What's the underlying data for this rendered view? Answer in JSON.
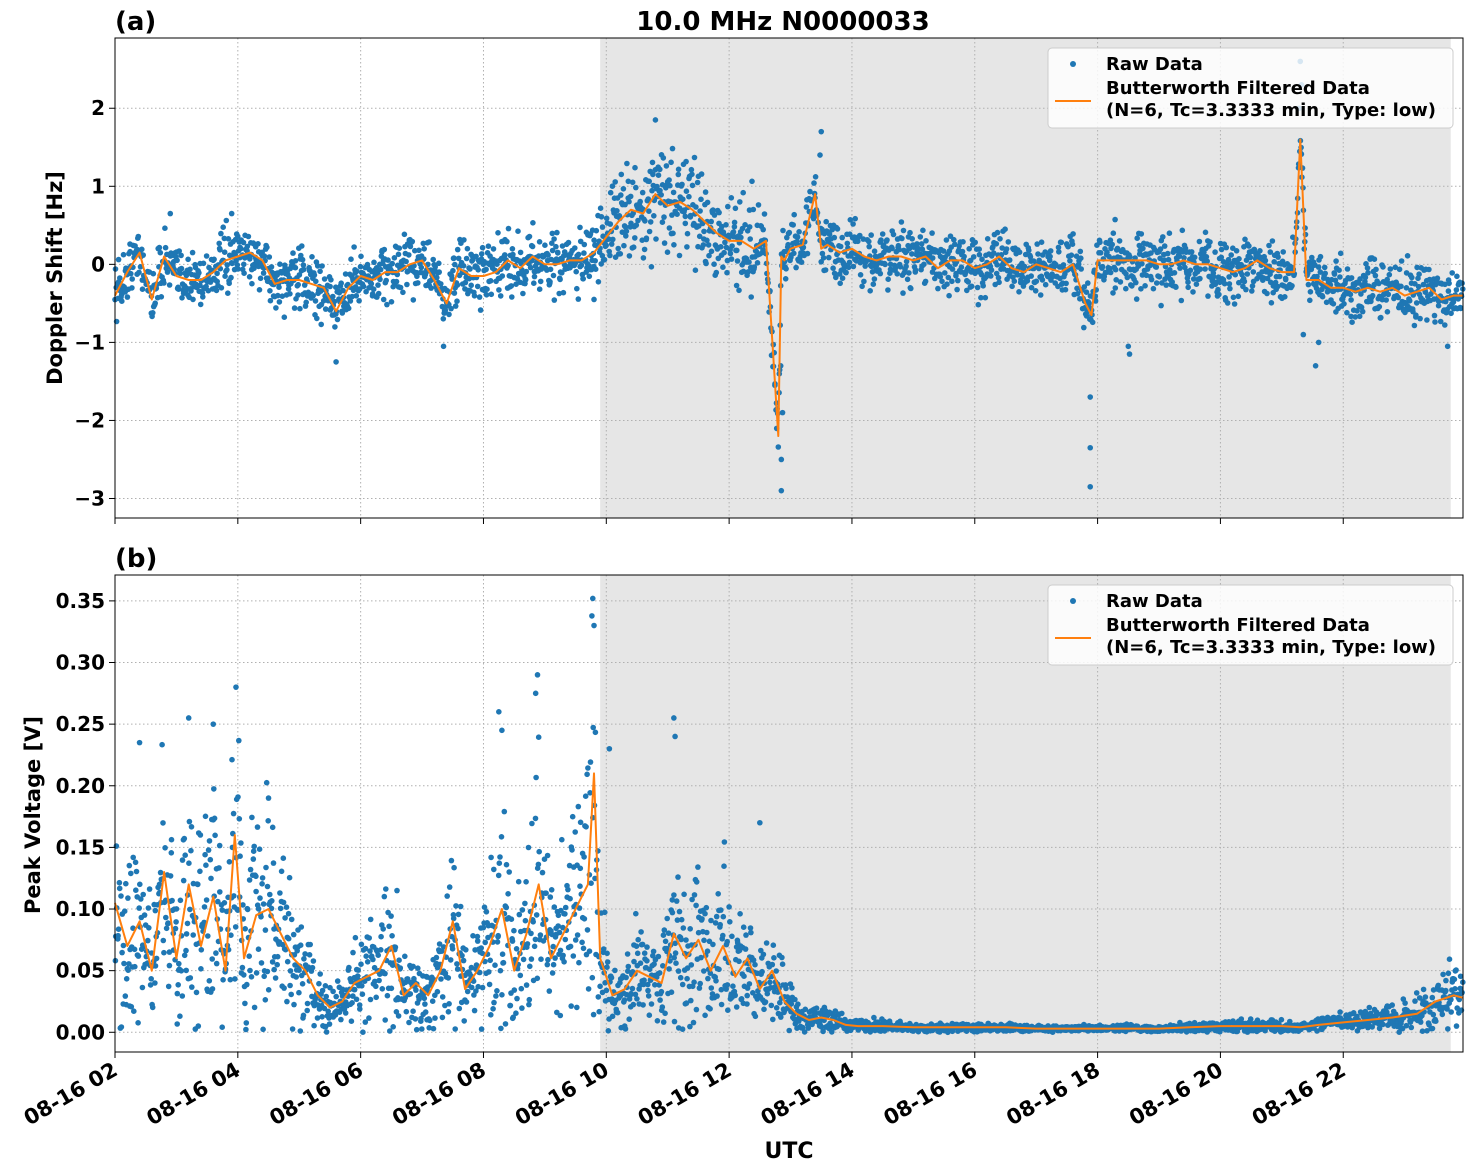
{
  "title": "10.0 MHz N0000033",
  "xlabel": "UTC",
  "x_ticks": [
    "08-16 02",
    "08-16 04",
    "08-16 06",
    "08-16 08",
    "08-16 10",
    "08-16 12",
    "08-16 14",
    "08-16 16",
    "08-16 18",
    "08-16 20",
    "08-16 22"
  ],
  "colors": {
    "raw": "#1f77b4",
    "filtered": "#ff7f0e",
    "shade": "#e6e6e6",
    "grid": "#b0b0b0"
  },
  "legend": {
    "raw_label": "Raw Data",
    "filtered_label_line1": "Butterworth Filtered Data",
    "filtered_label_line2": "(N=6, Tc=3.3333 min, Type: low)",
    "placement": "upper right"
  },
  "shaded_region": {
    "start_hour": 9.9,
    "end_hour": 23.75
  },
  "chart_data": [
    {
      "type": "scatter",
      "panel_label": "(a)",
      "ylabel": "Doppler Shift [Hz]",
      "xlim_hours": [
        2.0,
        23.95
      ],
      "ylim": [
        -3.25,
        2.9
      ],
      "y_ticks": [
        {
          "v": 2,
          "t": "2"
        },
        {
          "v": 1,
          "t": "1"
        },
        {
          "v": 0,
          "t": "0"
        },
        {
          "v": -1,
          "t": "−1"
        },
        {
          "v": -2,
          "t": "−2"
        },
        {
          "v": -3,
          "t": "−3"
        }
      ],
      "grid": true,
      "series": [
        {
          "name": "Butterworth Filtered Data",
          "x_hours": [
            2.0,
            2.2,
            2.4,
            2.6,
            2.8,
            3.0,
            3.2,
            3.4,
            3.6,
            3.8,
            4.0,
            4.2,
            4.4,
            4.6,
            4.8,
            5.0,
            5.2,
            5.4,
            5.6,
            5.8,
            6.0,
            6.2,
            6.4,
            6.6,
            6.8,
            7.0,
            7.2,
            7.4,
            7.6,
            7.8,
            8.0,
            8.2,
            8.4,
            8.6,
            8.8,
            9.0,
            9.2,
            9.4,
            9.6,
            9.8,
            10.0,
            10.2,
            10.4,
            10.6,
            10.8,
            11.0,
            11.2,
            11.4,
            11.6,
            11.8,
            12.0,
            12.2,
            12.4,
            12.6,
            12.8,
            12.85,
            12.9,
            13.0,
            13.2,
            13.4,
            13.5,
            13.6,
            13.8,
            14.0,
            14.2,
            14.4,
            14.6,
            14.8,
            15.0,
            15.2,
            15.4,
            15.6,
            15.8,
            16.0,
            16.2,
            16.4,
            16.6,
            16.8,
            17.0,
            17.2,
            17.4,
            17.6,
            17.8,
            17.9,
            18.0,
            18.2,
            18.4,
            18.6,
            18.8,
            19.0,
            19.2,
            19.4,
            19.6,
            19.8,
            20.0,
            20.2,
            20.4,
            20.6,
            20.8,
            21.0,
            21.2,
            21.3,
            21.4,
            21.6,
            21.8,
            22.0,
            22.2,
            22.4,
            22.6,
            22.8,
            23.0,
            23.2,
            23.4,
            23.6,
            23.8,
            23.95
          ],
          "y": [
            -0.4,
            -0.1,
            0.15,
            -0.45,
            0.1,
            -0.15,
            -0.2,
            -0.2,
            -0.1,
            0.05,
            0.1,
            0.15,
            0.05,
            -0.25,
            -0.2,
            -0.2,
            -0.25,
            -0.3,
            -0.6,
            -0.3,
            -0.15,
            -0.2,
            -0.1,
            -0.1,
            0.0,
            0.05,
            -0.2,
            -0.5,
            -0.05,
            -0.15,
            -0.15,
            -0.1,
            0.05,
            -0.05,
            0.1,
            0.0,
            0.0,
            0.05,
            0.05,
            0.15,
            0.35,
            0.55,
            0.7,
            0.65,
            0.9,
            0.75,
            0.8,
            0.7,
            0.55,
            0.4,
            0.3,
            0.3,
            0.2,
            0.3,
            -2.2,
            0.1,
            0.05,
            0.2,
            0.25,
            0.9,
            0.2,
            0.25,
            0.15,
            0.2,
            0.1,
            0.05,
            0.1,
            0.1,
            0.05,
            0.1,
            -0.05,
            0.05,
            0.05,
            -0.05,
            0.0,
            0.1,
            -0.05,
            -0.1,
            0.0,
            -0.05,
            -0.1,
            0.0,
            -0.5,
            -0.65,
            0.05,
            0.05,
            0.05,
            0.05,
            0.05,
            0.0,
            0.0,
            0.05,
            0.0,
            0.0,
            -0.05,
            -0.1,
            -0.05,
            0.05,
            -0.05,
            -0.1,
            -0.1,
            1.6,
            -0.2,
            -0.2,
            -0.3,
            -0.3,
            -0.35,
            -0.3,
            -0.35,
            -0.3,
            -0.4,
            -0.35,
            -0.3,
            -0.45,
            -0.4,
            -0.4
          ]
        },
        {
          "name": "Raw Data",
          "note_spread_hz": [
            0.25,
            0.45
          ],
          "outliers_hours_hz": [
            [
              12.85,
              -2.9
            ],
            [
              12.85,
              -2.5
            ],
            [
              12.87,
              -1.9
            ],
            [
              12.84,
              -1.3
            ],
            [
              13.5,
              1.7
            ],
            [
              13.48,
              1.4
            ],
            [
              17.88,
              -2.85
            ],
            [
              17.88,
              -2.35
            ],
            [
              17.88,
              -1.7
            ],
            [
              18.5,
              -1.05
            ],
            [
              18.52,
              -1.15
            ],
            [
              21.3,
              2.6
            ],
            [
              21.32,
              2.3
            ],
            [
              21.28,
              2.0
            ],
            [
              21.35,
              -0.9
            ],
            [
              21.55,
              -1.3
            ],
            [
              21.6,
              -1.0
            ],
            [
              10.8,
              1.85
            ],
            [
              2.9,
              0.65
            ],
            [
              3.9,
              0.65
            ],
            [
              5.6,
              -1.25
            ],
            [
              7.35,
              -1.05
            ],
            [
              9.8,
              -0.45
            ],
            [
              23.7,
              -1.05
            ]
          ]
        }
      ]
    },
    {
      "type": "scatter",
      "panel_label": "(b)",
      "ylabel": "Peak Voltage [V]",
      "xlim_hours": [
        2.0,
        23.95
      ],
      "ylim": [
        -0.016,
        0.371
      ],
      "y_ticks": [
        {
          "v": 0.35,
          "t": "0.35"
        },
        {
          "v": 0.3,
          "t": "0.30"
        },
        {
          "v": 0.25,
          "t": "0.25"
        },
        {
          "v": 0.2,
          "t": "0.20"
        },
        {
          "v": 0.15,
          "t": "0.15"
        },
        {
          "v": 0.1,
          "t": "0.10"
        },
        {
          "v": 0.05,
          "t": "0.05"
        },
        {
          "v": 0.0,
          "t": "0.00"
        }
      ],
      "grid": true,
      "series": [
        {
          "name": "Butterworth Filtered Data",
          "x_hours": [
            2.0,
            2.2,
            2.4,
            2.6,
            2.8,
            3.0,
            3.2,
            3.4,
            3.6,
            3.8,
            3.95,
            4.1,
            4.3,
            4.5,
            4.7,
            4.9,
            5.1,
            5.3,
            5.5,
            5.7,
            5.9,
            6.1,
            6.3,
            6.5,
            6.7,
            6.9,
            7.1,
            7.3,
            7.5,
            7.7,
            7.9,
            8.1,
            8.3,
            8.5,
            8.7,
            8.9,
            9.1,
            9.3,
            9.5,
            9.7,
            9.8,
            9.9,
            10.1,
            10.3,
            10.5,
            10.7,
            10.9,
            11.1,
            11.3,
            11.5,
            11.7,
            11.9,
            12.1,
            12.3,
            12.5,
            12.7,
            12.9,
            13.1,
            13.3,
            13.5,
            13.7,
            13.9,
            14.1,
            14.5,
            15.0,
            15.5,
            16.0,
            16.5,
            17.0,
            17.5,
            18.0,
            18.5,
            19.0,
            19.5,
            20.0,
            20.5,
            21.0,
            21.3,
            21.6,
            22.0,
            22.4,
            22.8,
            23.2,
            23.5,
            23.8,
            23.95
          ],
          "y": [
            0.105,
            0.07,
            0.09,
            0.05,
            0.13,
            0.06,
            0.12,
            0.07,
            0.11,
            0.05,
            0.16,
            0.06,
            0.095,
            0.1,
            0.08,
            0.06,
            0.05,
            0.03,
            0.02,
            0.025,
            0.04,
            0.045,
            0.05,
            0.07,
            0.03,
            0.04,
            0.03,
            0.05,
            0.09,
            0.035,
            0.05,
            0.07,
            0.1,
            0.05,
            0.08,
            0.12,
            0.06,
            0.08,
            0.1,
            0.12,
            0.21,
            0.06,
            0.03,
            0.035,
            0.05,
            0.045,
            0.04,
            0.08,
            0.06,
            0.075,
            0.05,
            0.07,
            0.045,
            0.06,
            0.035,
            0.05,
            0.025,
            0.015,
            0.01,
            0.012,
            0.01,
            0.006,
            0.005,
            0.005,
            0.004,
            0.004,
            0.004,
            0.004,
            0.003,
            0.003,
            0.003,
            0.003,
            0.003,
            0.004,
            0.005,
            0.005,
            0.005,
            0.004,
            0.006,
            0.008,
            0.01,
            0.012,
            0.015,
            0.025,
            0.03,
            0.028
          ]
        },
        {
          "name": "Raw Data",
          "outliers_hours_v": [
            [
              2.4,
              0.235
            ],
            [
              3.2,
              0.255
            ],
            [
              3.6,
              0.25
            ],
            [
              3.97,
              0.28
            ],
            [
              9.78,
              0.352
            ],
            [
              9.8,
              0.33
            ],
            [
              8.88,
              0.29
            ],
            [
              8.85,
              0.275
            ],
            [
              11.1,
              0.255
            ],
            [
              11.12,
              0.24
            ],
            [
              10.05,
              0.23
            ],
            [
              8.25,
              0.26
            ],
            [
              8.3,
              0.245
            ],
            [
              12.5,
              0.17
            ],
            [
              4.5,
              0.19
            ]
          ]
        }
      ]
    }
  ]
}
